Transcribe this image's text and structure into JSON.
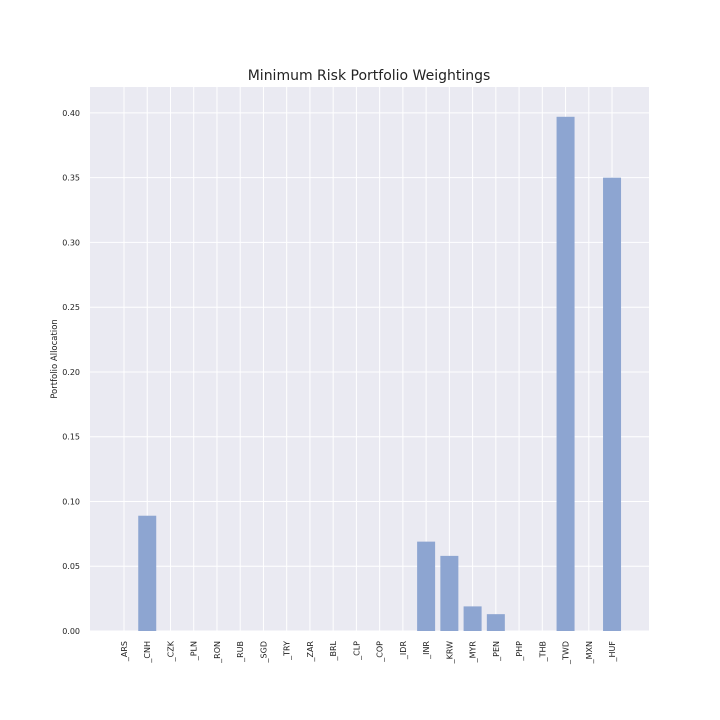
{
  "chart_data": {
    "type": "bar",
    "title": "Minimum Risk Portfolio Weightings",
    "xlabel": "",
    "ylabel": "Portfolio Allocation",
    "categories": [
      "_ARS",
      "_CNH",
      "_CZK",
      "_PLN",
      "_RON",
      "_RUB",
      "_SGD",
      "_TRY",
      "_ZAR",
      "_BRL",
      "_CLP",
      "_COP",
      "_IDR",
      "_INR",
      "_KRW",
      "_MYR",
      "_PEN",
      "_PHP",
      "_THB",
      "_TWD",
      "_MXN",
      "_HUF"
    ],
    "values": [
      0,
      0.089,
      0,
      0,
      0,
      0,
      0,
      0,
      0,
      0,
      0,
      0,
      0,
      0.069,
      0.058,
      0.019,
      0.013,
      0,
      0,
      0.397,
      0,
      0.35
    ],
    "ylim": [
      0,
      0.42
    ],
    "yticks": [
      "0.00",
      "0.05",
      "0.10",
      "0.15",
      "0.20",
      "0.25",
      "0.30",
      "0.35",
      "0.40"
    ],
    "grid": true,
    "bar_color": "#8da5d1",
    "background_color": "#eaeaf2"
  }
}
